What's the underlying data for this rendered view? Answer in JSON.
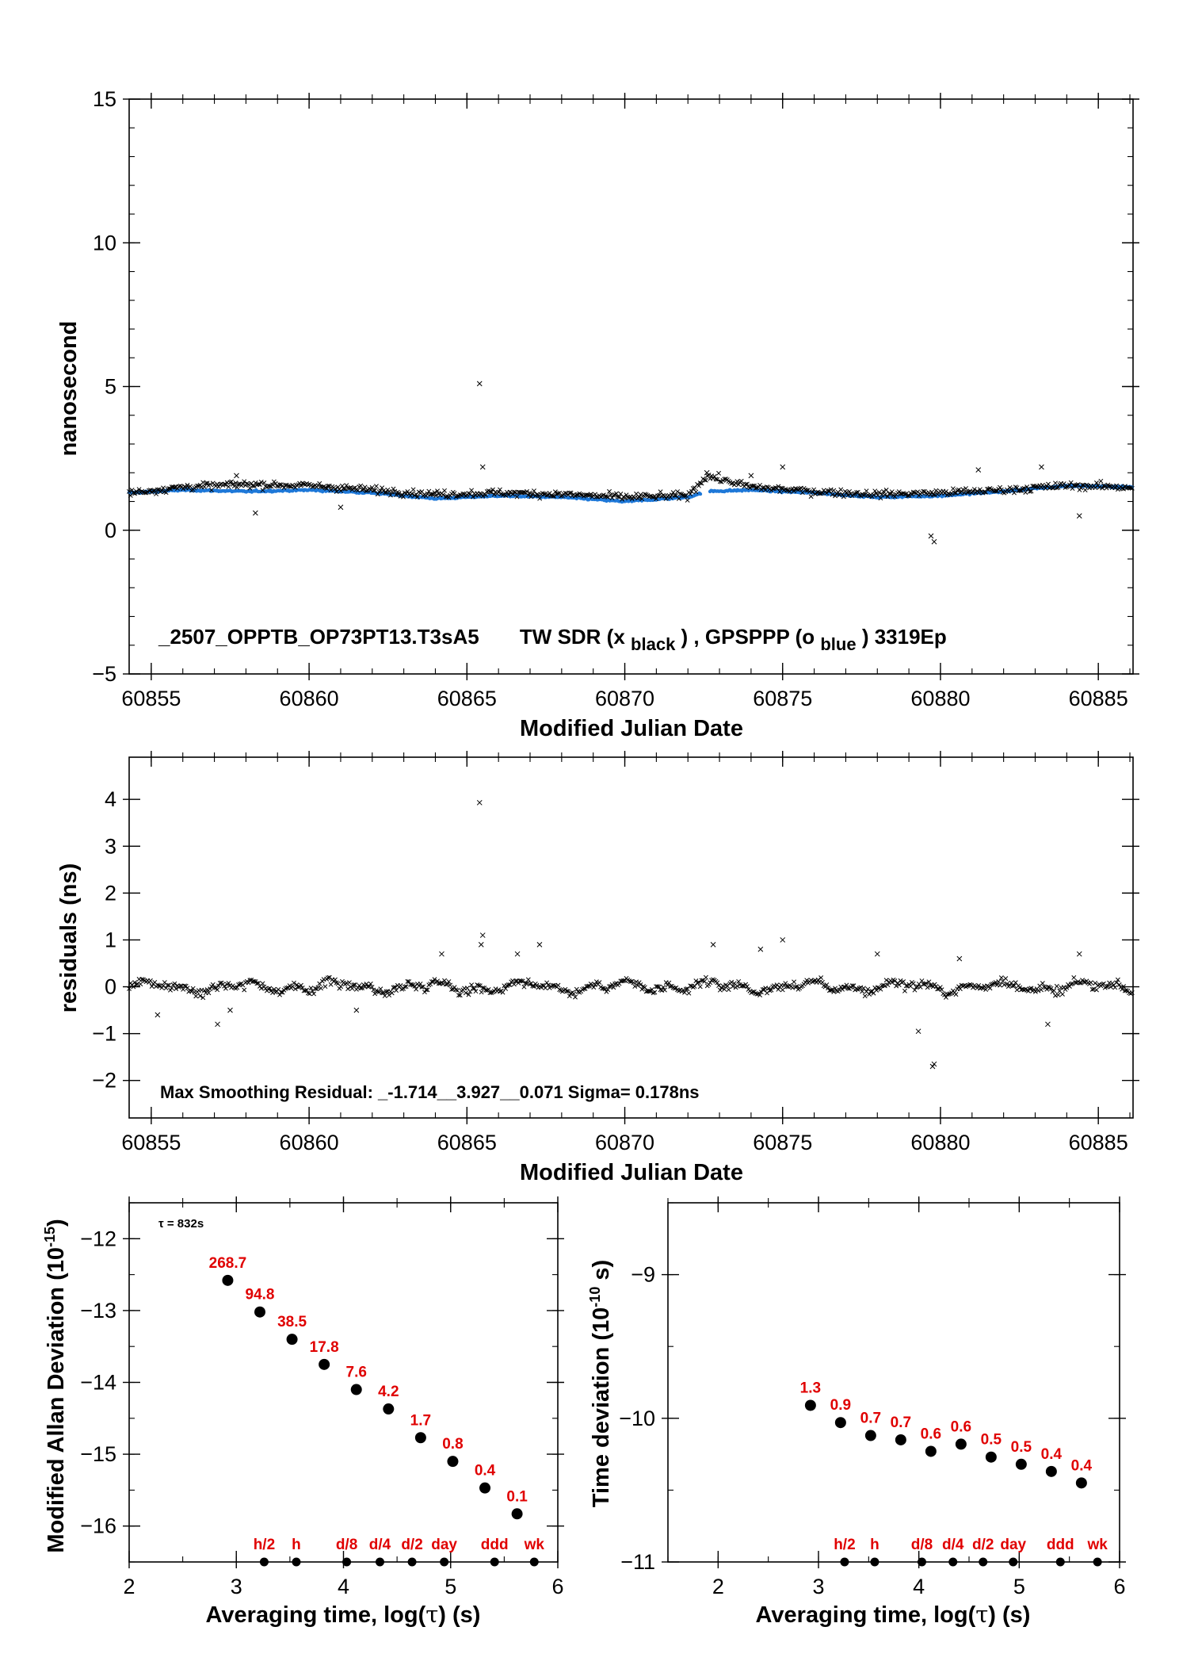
{
  "colors": {
    "black_series": "#000000",
    "blue_series": "#1e78d8",
    "red_labels": "#e00000"
  },
  "chart_data": [
    {
      "id": "time-series",
      "type": "scatter",
      "xlabel": "Modified Julian Date",
      "ylabel": "nanosecond",
      "xlim": [
        60854.3,
        60886.1
      ],
      "ylim": [
        -5,
        15
      ],
      "xticks": [
        60855,
        60860,
        60865,
        60870,
        60875,
        60880,
        60885
      ],
      "yticks": [
        -5,
        0,
        5,
        10,
        15
      ],
      "annotation_parts": [
        "_2507_OPPTB_OP73PT13.T3sA5",
        "TW SDR (x",
        "black",
        ") ,  GPSPPP (o",
        "blue",
        ")  3319Ep"
      ],
      "series": [
        {
          "name": "TW SDR",
          "marker": "x",
          "color": "#000000",
          "trend": [
            [
              60854.3,
              1.3
            ],
            [
              60856,
              1.5
            ],
            [
              60858,
              1.6
            ],
            [
              60860,
              1.55
            ],
            [
              60862,
              1.4
            ],
            [
              60864,
              1.25
            ],
            [
              60866,
              1.3
            ],
            [
              60868,
              1.25
            ],
            [
              60870,
              1.15
            ],
            [
              60872,
              1.2
            ],
            [
              60872.6,
              1.9
            ],
            [
              60874,
              1.5
            ],
            [
              60876,
              1.35
            ],
            [
              60878,
              1.25
            ],
            [
              60880,
              1.3
            ],
            [
              60882,
              1.4
            ],
            [
              60884,
              1.55
            ],
            [
              60886.1,
              1.5
            ]
          ],
          "outliers": [
            [
              60865.4,
              5.1
            ],
            [
              60865.5,
              2.2
            ],
            [
              60879.8,
              -0.4
            ],
            [
              60879.7,
              -0.2
            ],
            [
              60875,
              2.2
            ],
            [
              60874,
              1.9
            ],
            [
              60857.7,
              1.9
            ],
            [
              60858.3,
              0.6
            ],
            [
              60861,
              0.8
            ],
            [
              60884.4,
              0.5
            ],
            [
              60872.6,
              2.0
            ],
            [
              60881.2,
              2.1
            ],
            [
              60883.2,
              2.2
            ]
          ]
        },
        {
          "name": "GPSPPP",
          "marker": "o",
          "color": "#1e78d8",
          "trend": [
            [
              60854.3,
              1.3
            ],
            [
              60856,
              1.4
            ],
            [
              60858,
              1.35
            ],
            [
              60860,
              1.4
            ],
            [
              60862,
              1.3
            ],
            [
              60864,
              1.1
            ],
            [
              60866,
              1.2
            ],
            [
              60868,
              1.15
            ],
            [
              60870,
              1.0
            ],
            [
              60872,
              1.15
            ],
            [
              60872.6,
              1.35
            ],
            [
              60874,
              1.4
            ],
            [
              60876,
              1.3
            ],
            [
              60878,
              1.15
            ],
            [
              60880,
              1.2
            ],
            [
              60882,
              1.35
            ],
            [
              60884,
              1.55
            ],
            [
              60886.1,
              1.5
            ]
          ]
        }
      ]
    },
    {
      "id": "residuals",
      "type": "scatter",
      "xlabel": "Modified Julian Date",
      "ylabel": "residuals (ns)",
      "xlim": [
        60854.3,
        60886.1
      ],
      "ylim": [
        -2.8,
        4.9
      ],
      "xticks": [
        60855,
        60860,
        60865,
        60870,
        60875,
        60880,
        60885
      ],
      "yticks": [
        -2,
        -1,
        0,
        1,
        2,
        3,
        4
      ],
      "annotation": "Max Smoothing Residual: _-1.714__3.927__0.071  Sigma= 0.178ns",
      "series": [
        {
          "name": "residuals",
          "marker": "x",
          "color": "#000000",
          "outliers": [
            [
              60865.4,
              3.93
            ],
            [
              60865.5,
              1.1
            ],
            [
              60865.45,
              0.9
            ],
            [
              60879.8,
              -1.65
            ],
            [
              60879.75,
              -1.7
            ],
            [
              60875,
              1.0
            ],
            [
              60872.8,
              0.9
            ],
            [
              60879.3,
              -0.95
            ],
            [
              60857.1,
              -0.8
            ],
            [
              60857.5,
              -0.5
            ],
            [
              60861.5,
              -0.5
            ],
            [
              60864.2,
              0.7
            ],
            [
              60866.6,
              0.7
            ],
            [
              60867.3,
              0.9
            ],
            [
              60874.3,
              0.8
            ],
            [
              60883.4,
              -0.8
            ],
            [
              60884.4,
              0.7
            ],
            [
              60878,
              0.7
            ],
            [
              60880.6,
              0.6
            ],
            [
              60855.2,
              -0.6
            ]
          ]
        }
      ]
    },
    {
      "id": "modified-allan-deviation",
      "type": "scatter",
      "xlabel_parts": [
        "Averaging time, log(",
        "τ",
        ") (s)"
      ],
      "ylabel_parts": [
        "Modified Allan Deviation (10",
        "-15",
        ")"
      ],
      "xlim": [
        2,
        6
      ],
      "ylim": [
        -16.5,
        -11.5
      ],
      "xticks": [
        2,
        3,
        4,
        5,
        6
      ],
      "yticks": [
        -12,
        -13,
        -14,
        -15,
        -16
      ],
      "tau_note": "τ = 832s",
      "points": [
        {
          "x": 2.92,
          "y": -12.58,
          "label": "268.7"
        },
        {
          "x": 3.22,
          "y": -13.02,
          "label": "94.8"
        },
        {
          "x": 3.52,
          "y": -13.4,
          "label": "38.5"
        },
        {
          "x": 3.82,
          "y": -13.75,
          "label": "17.8"
        },
        {
          "x": 4.12,
          "y": -14.1,
          "label": "7.6"
        },
        {
          "x": 4.42,
          "y": -14.37,
          "label": "4.2"
        },
        {
          "x": 4.72,
          "y": -14.77,
          "label": "1.7"
        },
        {
          "x": 5.02,
          "y": -15.1,
          "label": "0.8"
        },
        {
          "x": 5.32,
          "y": -15.47,
          "label": "0.4"
        },
        {
          "x": 5.62,
          "y": -15.83,
          "label": "0.1"
        }
      ],
      "time_markers": [
        {
          "x": 3.26,
          "label": "h/2"
        },
        {
          "x": 3.56,
          "label": "h"
        },
        {
          "x": 4.03,
          "label": "d/8"
        },
        {
          "x": 4.34,
          "label": "d/4"
        },
        {
          "x": 4.64,
          "label": "d/2"
        },
        {
          "x": 4.94,
          "label": "day"
        },
        {
          "x": 5.41,
          "label": "ddd"
        },
        {
          "x": 5.78,
          "label": "wk"
        }
      ]
    },
    {
      "id": "time-deviation",
      "type": "scatter",
      "xlabel_parts": [
        "Averaging time, log(",
        "τ",
        ") (s)"
      ],
      "ylabel_parts": [
        "Time deviation (10",
        "-10",
        " s)"
      ],
      "xlim": [
        1.5,
        6
      ],
      "ylim": [
        -11,
        -8.5
      ],
      "xticks": [
        2,
        3,
        4,
        5,
        6
      ],
      "yticks": [
        -9,
        -10,
        -11
      ],
      "points": [
        {
          "x": 2.92,
          "y": -9.91,
          "label": "1.3"
        },
        {
          "x": 3.22,
          "y": -10.03,
          "label": "0.9"
        },
        {
          "x": 3.52,
          "y": -10.12,
          "label": "0.7"
        },
        {
          "x": 3.82,
          "y": -10.15,
          "label": "0.7"
        },
        {
          "x": 4.12,
          "y": -10.23,
          "label": "0.6"
        },
        {
          "x": 4.42,
          "y": -10.18,
          "label": "0.6"
        },
        {
          "x": 4.72,
          "y": -10.27,
          "label": "0.5"
        },
        {
          "x": 5.02,
          "y": -10.32,
          "label": "0.5"
        },
        {
          "x": 5.32,
          "y": -10.37,
          "label": "0.4"
        },
        {
          "x": 5.62,
          "y": -10.45,
          "label": "0.4"
        }
      ],
      "time_markers": [
        {
          "x": 3.26,
          "label": "h/2"
        },
        {
          "x": 3.56,
          "label": "h"
        },
        {
          "x": 4.03,
          "label": "d/8"
        },
        {
          "x": 4.34,
          "label": "d/4"
        },
        {
          "x": 4.64,
          "label": "d/2"
        },
        {
          "x": 4.94,
          "label": "day"
        },
        {
          "x": 5.41,
          "label": "ddd"
        },
        {
          "x": 5.78,
          "label": "wk"
        }
      ]
    }
  ]
}
